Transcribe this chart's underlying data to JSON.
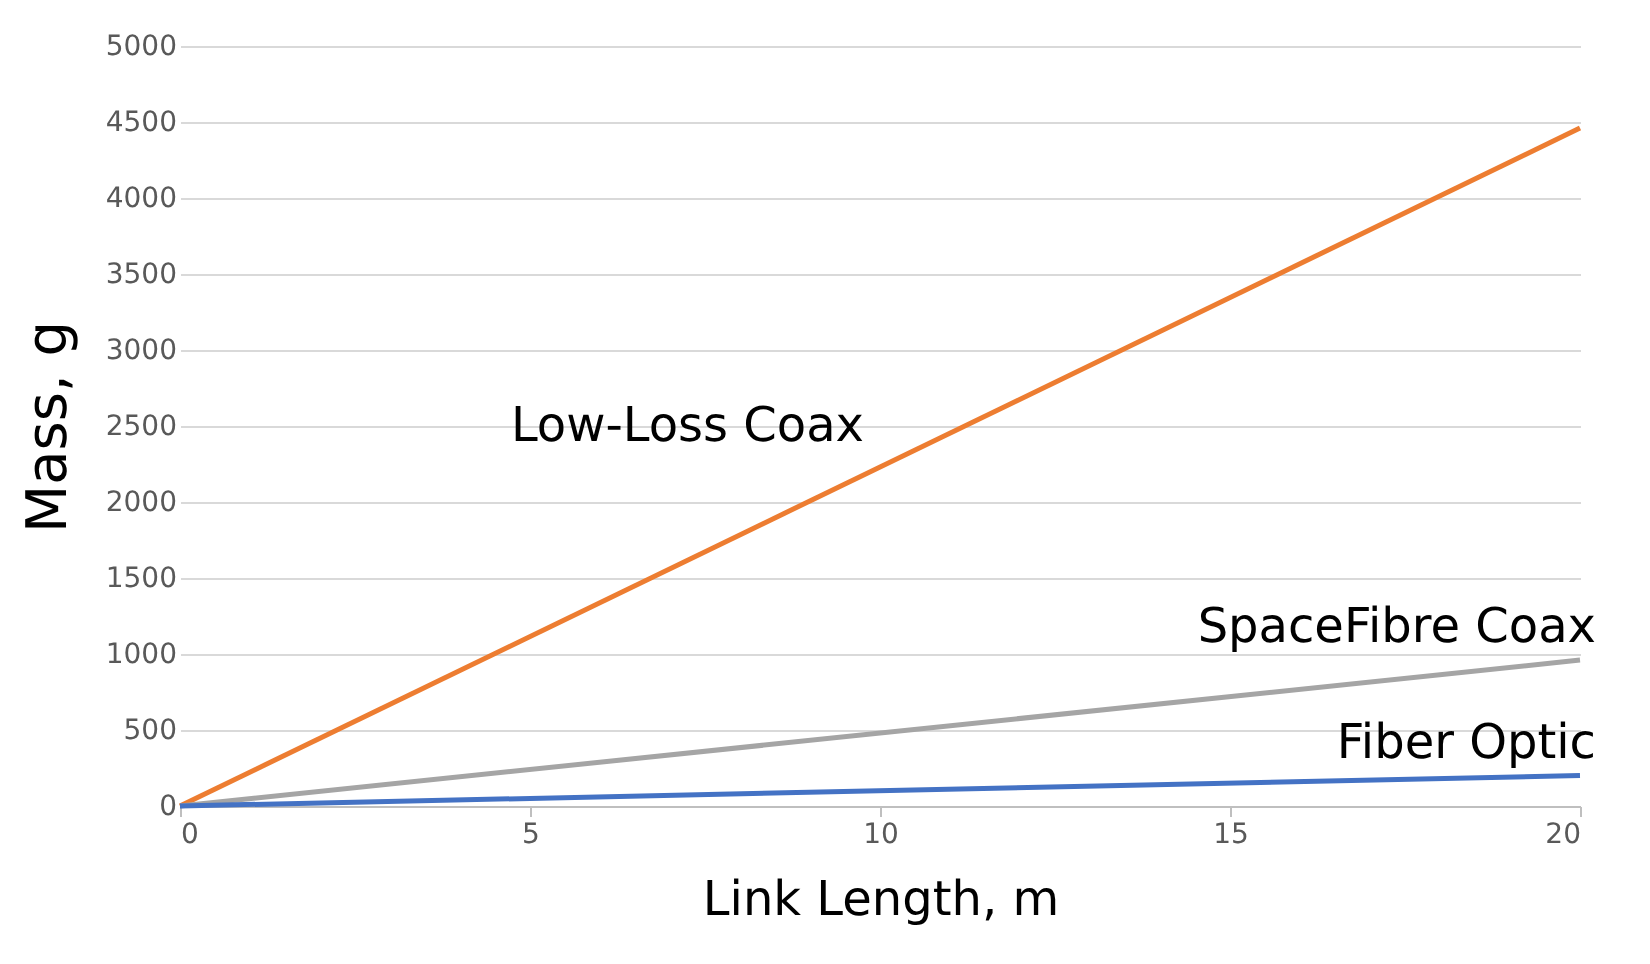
{
  "chart_data": {
    "type": "line",
    "xlabel": "Link Length, m",
    "ylabel": "Mass, g",
    "x": [
      0,
      20
    ],
    "series": [
      {
        "name": "Low-Loss Coax",
        "color": "#ed7d31",
        "values": [
          0,
          4460
        ]
      },
      {
        "name": "SpaceFibre Coax",
        "color": "#a5a5a5",
        "values": [
          0,
          960
        ]
      },
      {
        "name": "Fiber Optic",
        "color": "#4472c4",
        "values": [
          0,
          200
        ]
      }
    ],
    "xlim": [
      0,
      20
    ],
    "xticks": [
      0,
      5,
      10,
      15,
      20
    ],
    "ylim": [
      0,
      5000
    ],
    "yticks": [
      0,
      500,
      1000,
      1500,
      2000,
      2500,
      3000,
      3500,
      4000,
      4500,
      5000
    ],
    "grid": "y",
    "marker": "none",
    "line_style": "solid"
  }
}
